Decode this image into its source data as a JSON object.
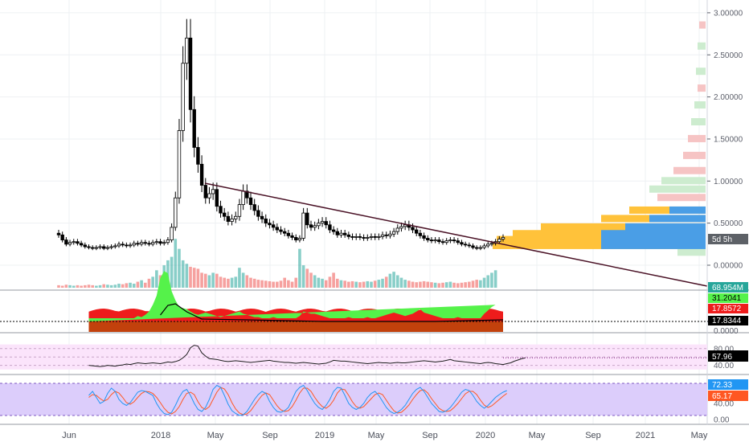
{
  "colors": {
    "up": "#26a69a",
    "down": "#ef5350",
    "candle": "#000000",
    "trendline": "#4a1226",
    "vp_yellow": "#ffc23a",
    "vp_blue": "#4a9ee6",
    "vp_green_soft": "#cdeccf",
    "vp_red_soft": "#f6c4c4",
    "osc_green": "#55f24a",
    "osc_red": "#ee1c1c",
    "osc_brown": "#c2410c",
    "rsi_fill": "#fbe4fb",
    "rsi_line": "#1e1e1e",
    "stoch_fill": "#dccdfb",
    "stoch_k": "#2196f3",
    "stoch_d": "#ff5722"
  },
  "x_axis": {
    "labels": [
      "Jun",
      "2018",
      "May",
      "Sep",
      "2019",
      "May",
      "Sep",
      "2020",
      "May",
      "Sep",
      "2021",
      "May"
    ]
  },
  "price_axis": {
    "ticks": [
      "3.00000",
      "2.50000",
      "2.00000",
      "1.50000",
      "1.00000",
      "0.50000",
      "0.00000"
    ],
    "countdown_badge": "5d 5h"
  },
  "indicator_badges": {
    "volume_last": "68.954M",
    "osc_a": "31.2041",
    "osc_b": "17.8572",
    "osc_c": "17.8344",
    "osc_zero": "0.0000",
    "rsi_value": "57.96",
    "stoch_k": "72.33",
    "stoch_d": "65.17"
  },
  "rsi_axis": {
    "ticks": [
      "80.00",
      "40.00"
    ]
  },
  "stoch_axis": {
    "ticks": [
      "40.00",
      "0.00"
    ]
  },
  "chart_data": {
    "type": "candlestick",
    "interval": "weekly",
    "y_scale": "linear",
    "ylim": [
      -0.2,
      3.2
    ],
    "series": [
      {
        "name": "price",
        "open": [
          0.38,
          0.36,
          0.3,
          0.25,
          0.27,
          0.28,
          0.26,
          0.24,
          0.22,
          0.21,
          0.2,
          0.21,
          0.22,
          0.2,
          0.21,
          0.22,
          0.23,
          0.25,
          0.24,
          0.23,
          0.24,
          0.26,
          0.25,
          0.27,
          0.26,
          0.25,
          0.27,
          0.28,
          0.26,
          0.27,
          0.3,
          0.45,
          0.8,
          1.6,
          2.4,
          2.7,
          1.85,
          1.4,
          1.2,
          0.95,
          0.8,
          0.85,
          0.9,
          0.7,
          0.62,
          0.58,
          0.52,
          0.55,
          0.58,
          0.72,
          0.88,
          0.8,
          0.72,
          0.65,
          0.58,
          0.55,
          0.5,
          0.48,
          0.45,
          0.42,
          0.4,
          0.38,
          0.35,
          0.33,
          0.3,
          0.32,
          0.62,
          0.48,
          0.45,
          0.47,
          0.5,
          0.52,
          0.48,
          0.42,
          0.4,
          0.36,
          0.38,
          0.36,
          0.34,
          0.33,
          0.34,
          0.33,
          0.32,
          0.33,
          0.34,
          0.33,
          0.34,
          0.36,
          0.35,
          0.37,
          0.4,
          0.44,
          0.46,
          0.48,
          0.45,
          0.42,
          0.38,
          0.35,
          0.32,
          0.3,
          0.29,
          0.3,
          0.28,
          0.27,
          0.29,
          0.3,
          0.29,
          0.27,
          0.25,
          0.24,
          0.23,
          0.21,
          0.2,
          0.21,
          0.23,
          0.25,
          0.26,
          0.28,
          0.31
        ],
        "close": [
          0.36,
          0.3,
          0.25,
          0.27,
          0.28,
          0.26,
          0.24,
          0.22,
          0.21,
          0.2,
          0.21,
          0.22,
          0.2,
          0.21,
          0.22,
          0.23,
          0.25,
          0.24,
          0.23,
          0.24,
          0.26,
          0.25,
          0.27,
          0.26,
          0.25,
          0.27,
          0.28,
          0.26,
          0.27,
          0.3,
          0.45,
          0.8,
          1.6,
          2.4,
          2.7,
          1.85,
          1.4,
          1.2,
          0.95,
          0.8,
          0.85,
          0.9,
          0.7,
          0.62,
          0.58,
          0.52,
          0.55,
          0.58,
          0.72,
          0.88,
          0.8,
          0.72,
          0.65,
          0.58,
          0.55,
          0.5,
          0.48,
          0.45,
          0.42,
          0.4,
          0.38,
          0.35,
          0.33,
          0.3,
          0.32,
          0.62,
          0.48,
          0.45,
          0.47,
          0.5,
          0.52,
          0.48,
          0.42,
          0.4,
          0.36,
          0.38,
          0.36,
          0.34,
          0.33,
          0.34,
          0.33,
          0.32,
          0.33,
          0.34,
          0.33,
          0.34,
          0.36,
          0.35,
          0.37,
          0.4,
          0.44,
          0.46,
          0.48,
          0.45,
          0.42,
          0.38,
          0.35,
          0.32,
          0.3,
          0.29,
          0.3,
          0.28,
          0.27,
          0.29,
          0.3,
          0.29,
          0.27,
          0.25,
          0.24,
          0.23,
          0.21,
          0.2,
          0.21,
          0.23,
          0.25,
          0.26,
          0.28,
          0.31,
          0.33
        ]
      },
      {
        "name": "volume_relative",
        "values": [
          0.05,
          0.04,
          0.06,
          0.05,
          0.04,
          0.05,
          0.04,
          0.05,
          0.06,
          0.05,
          0.04,
          0.05,
          0.07,
          0.06,
          0.05,
          0.06,
          0.08,
          0.07,
          0.09,
          0.1,
          0.08,
          0.12,
          0.15,
          0.1,
          0.18,
          0.22,
          0.35,
          0.25,
          0.45,
          0.55,
          0.62,
          0.98,
          0.78,
          0.55,
          0.48,
          0.42,
          0.4,
          0.38,
          0.3,
          0.28,
          0.25,
          0.3,
          0.28,
          0.22,
          0.2,
          0.18,
          0.2,
          0.22,
          0.4,
          0.3,
          0.25,
          0.2,
          0.18,
          0.16,
          0.15,
          0.14,
          0.13,
          0.12,
          0.12,
          0.14,
          0.2,
          0.15,
          0.12,
          0.2,
          0.78,
          0.45,
          0.38,
          0.3,
          0.25,
          0.2,
          0.18,
          0.15,
          0.22,
          0.3,
          0.18,
          0.15,
          0.14,
          0.12,
          0.13,
          0.12,
          0.11,
          0.12,
          0.13,
          0.12,
          0.14,
          0.16,
          0.18,
          0.22,
          0.28,
          0.32,
          0.25,
          0.2,
          0.16,
          0.14,
          0.12,
          0.11,
          0.12,
          0.13,
          0.12,
          0.11,
          0.1,
          0.09,
          0.1,
          0.11,
          0.12,
          0.1,
          0.09,
          0.1,
          0.11,
          0.12,
          0.14,
          0.16,
          0.15,
          0.2,
          0.25,
          0.3,
          0.35
        ]
      },
      {
        "name": "rsi",
        "values": [
          40,
          39,
          38,
          37,
          38,
          40,
          39,
          38,
          40,
          41,
          43,
          42,
          44,
          46,
          45,
          44,
          45,
          46,
          45,
          44,
          46,
          48,
          47,
          49,
          52,
          58,
          66,
          82,
          88,
          86,
          70,
          62,
          56,
          55,
          54,
          52,
          50,
          49,
          50,
          51,
          50,
          49,
          48,
          47,
          48,
          49,
          50,
          51,
          52,
          50,
          49,
          48,
          47,
          47,
          46,
          45,
          46,
          47,
          46,
          45,
          44,
          43,
          44,
          45,
          48,
          52,
          51,
          50,
          50,
          49,
          48,
          47,
          46,
          45,
          44,
          45,
          46,
          47,
          46,
          46,
          45,
          46,
          47,
          46,
          46,
          47,
          48,
          49,
          50,
          51,
          50,
          49,
          48,
          49,
          50,
          52,
          54,
          51,
          50,
          49,
          48,
          47,
          46,
          45,
          44,
          46,
          47,
          46,
          44,
          43,
          42,
          44,
          46,
          50,
          53,
          56,
          58
        ]
      },
      {
        "name": "stoch_k",
        "values": [
          60,
          70,
          55,
          40,
          45,
          65,
          78,
          70,
          50,
          40,
          35,
          42,
          55,
          68,
          72,
          70,
          65,
          60,
          40,
          25,
          15,
          12,
          18,
          35,
          55,
          70,
          75,
          60,
          40,
          25,
          20,
          30,
          50,
          75,
          85,
          80,
          60,
          38,
          22,
          15,
          10,
          12,
          20,
          35,
          50,
          62,
          70,
          65,
          45,
          30,
          20,
          18,
          22,
          30,
          50,
          70,
          80,
          85,
          72,
          55,
          40,
          30,
          25,
          35,
          50,
          70,
          80,
          78,
          60,
          40,
          30,
          25,
          30,
          40,
          55,
          65,
          70,
          60,
          45,
          30,
          20,
          15,
          18,
          25,
          35,
          50,
          65,
          75,
          80,
          70,
          55,
          40,
          30,
          20,
          18,
          22,
          30,
          42,
          55,
          68,
          75,
          72,
          60,
          45,
          35,
          28,
          35,
          45,
          55,
          62,
          68,
          72
        ]
      },
      {
        "name": "stoch_d",
        "values": [
          55,
          62,
          60,
          52,
          46,
          50,
          62,
          70,
          66,
          55,
          42,
          38,
          44,
          55,
          65,
          70,
          69,
          65,
          55,
          42,
          28,
          18,
          14,
          20,
          32,
          50,
          65,
          68,
          62,
          44,
          30,
          25,
          32,
          50,
          68,
          80,
          76,
          62,
          42,
          26,
          16,
          12,
          14,
          22,
          35,
          48,
          60,
          66,
          62,
          48,
          34,
          24,
          20,
          22,
          32,
          48,
          66,
          78,
          78,
          70,
          55,
          42,
          32,
          28,
          35,
          48,
          66,
          76,
          74,
          60,
          44,
          32,
          28,
          32,
          42,
          52,
          62,
          66,
          62,
          48,
          34,
          22,
          16,
          18,
          26,
          36,
          50,
          62,
          72,
          74,
          66,
          52,
          40,
          28,
          22,
          20,
          22,
          30,
          40,
          52,
          64,
          70,
          70,
          62,
          48,
          36,
          30,
          34,
          42,
          50,
          58,
          65
        ]
      }
    ]
  }
}
